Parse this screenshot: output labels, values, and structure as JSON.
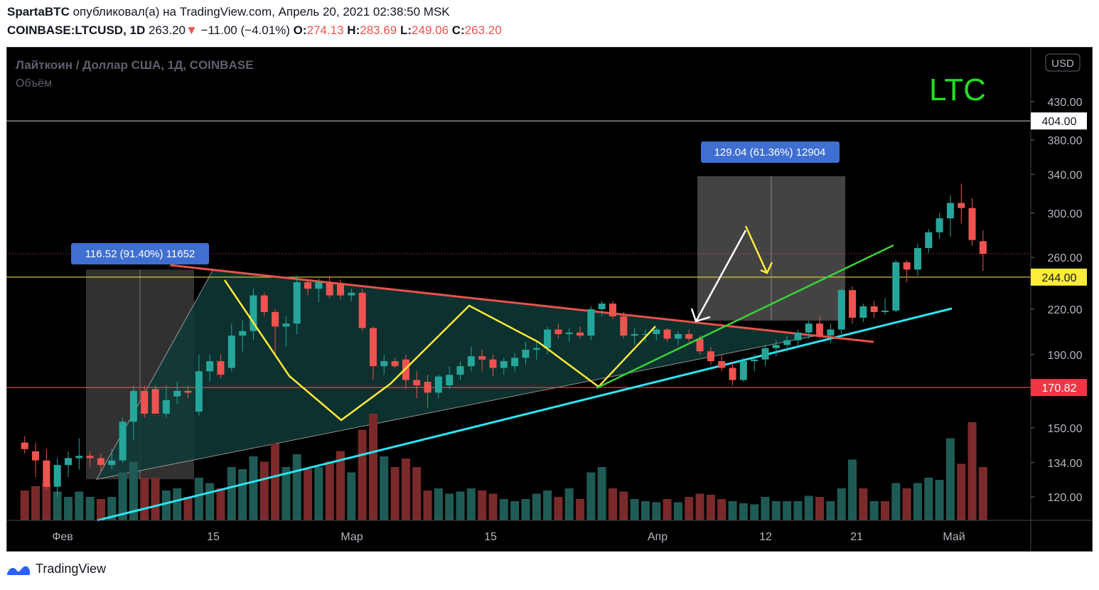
{
  "header": {
    "author": "SpartaBTC",
    "published_text": "опубликовал(а) на TradingView.com, Апрель 20, 2021 02:38:50 MSK",
    "symbol": "COINBASE:LTCUSD, 1D",
    "last_price": "263.20",
    "change_arrow": "▼",
    "change": "−11.00 (−4.01%)",
    "open_label": "O:",
    "open": "274.13",
    "high_label": "H:",
    "high": "283.69",
    "low_label": "L:",
    "low": "249.06",
    "close_label": "C:",
    "close": "263.20"
  },
  "footer": {
    "brand": "TradingView"
  },
  "colors": {
    "bull": "#26a69a",
    "bear": "#ef5350",
    "yellow": "#ffeb3b",
    "green": "#39d339",
    "cyan": "#2ce4f2",
    "red_line": "#e5534b",
    "measure_label": "#3f6fd1",
    "price_label_red": "#f23645",
    "price_label_yellow": "#ffeb3b"
  },
  "chart_data": {
    "type": "candlestick",
    "title": "Лайткоин / Доллар США, 1Д, COINBASE",
    "subtitle": "Объём",
    "annotation_text": "LTC",
    "currency_badge": "USD",
    "y_scale": "log",
    "ylim": [
      110,
      470
    ],
    "x_ticks": [
      "Фев",
      "15",
      "Мар",
      "15",
      "Апр",
      "12",
      "21",
      "Май"
    ],
    "y_ticks": [
      "430.00",
      "380.00",
      "340.00",
      "300.00",
      "260.00",
      "220.00",
      "190.00",
      "150.00",
      "134.00",
      "120.00"
    ],
    "price_labels": [
      {
        "value": "404.00",
        "style": "white"
      },
      {
        "value": "244.00",
        "style": "yellow"
      },
      {
        "value": "170.82",
        "style": "red"
      }
    ],
    "horizontal_lines": [
      404,
      244,
      170.82,
      263.2
    ],
    "measurements": [
      {
        "text": "116.52 (91.40%) 11652"
      },
      {
        "text": "129.04 (61.36%) 12904"
      }
    ],
    "candles": [
      {
        "d": "01-28",
        "o": 143,
        "h": 146,
        "l": 138,
        "c": 140
      },
      {
        "d": "01-29",
        "o": 139,
        "h": 143,
        "l": 128,
        "c": 135
      },
      {
        "d": "01-30",
        "o": 135,
        "h": 140,
        "l": 123,
        "c": 124
      },
      {
        "d": "01-31",
        "o": 124,
        "h": 136,
        "l": 120,
        "c": 133
      },
      {
        "d": "02-01",
        "o": 133,
        "h": 139,
        "l": 128,
        "c": 136
      },
      {
        "d": "02-02",
        "o": 136,
        "h": 145,
        "l": 131,
        "c": 137
      },
      {
        "d": "02-03",
        "o": 137,
        "h": 139,
        "l": 132,
        "c": 136
      },
      {
        "d": "02-04",
        "o": 136,
        "h": 138,
        "l": 130,
        "c": 133
      },
      {
        "d": "02-05",
        "o": 133,
        "h": 140,
        "l": 131,
        "c": 135
      },
      {
        "d": "02-06",
        "o": 135,
        "h": 155,
        "l": 134,
        "c": 153
      },
      {
        "d": "02-07",
        "o": 153,
        "h": 172,
        "l": 144,
        "c": 169
      },
      {
        "d": "02-08",
        "o": 169,
        "h": 172,
        "l": 155,
        "c": 157
      },
      {
        "d": "02-09",
        "o": 170,
        "h": 172,
        "l": 157,
        "c": 157
      },
      {
        "d": "02-10",
        "o": 157,
        "h": 172,
        "l": 155,
        "c": 164
      },
      {
        "d": "02-11",
        "o": 166,
        "h": 174,
        "l": 162,
        "c": 169
      },
      {
        "d": "02-12",
        "o": 169,
        "h": 172,
        "l": 165,
        "c": 168
      },
      {
        "d": "02-13",
        "o": 158,
        "h": 190,
        "l": 156,
        "c": 180
      },
      {
        "d": "02-14",
        "o": 180,
        "h": 190,
        "l": 174,
        "c": 186
      },
      {
        "d": "02-15",
        "o": 186,
        "h": 190,
        "l": 176,
        "c": 178
      },
      {
        "d": "02-16",
        "o": 182,
        "h": 210,
        "l": 180,
        "c": 202
      },
      {
        "d": "02-17",
        "o": 202,
        "h": 212,
        "l": 192,
        "c": 205
      },
      {
        "d": "02-18",
        "o": 205,
        "h": 235,
        "l": 199,
        "c": 230
      },
      {
        "d": "02-19",
        "o": 230,
        "h": 232,
        "l": 215,
        "c": 218
      },
      {
        "d": "02-20",
        "o": 218,
        "h": 220,
        "l": 190,
        "c": 208
      },
      {
        "d": "02-21",
        "o": 208,
        "h": 215,
        "l": 195,
        "c": 210
      },
      {
        "d": "02-22",
        "o": 210,
        "h": 245,
        "l": 203,
        "c": 240
      },
      {
        "d": "02-23",
        "o": 240,
        "h": 242,
        "l": 230,
        "c": 235
      },
      {
        "d": "02-24",
        "o": 235,
        "h": 243,
        "l": 225,
        "c": 240
      },
      {
        "d": "02-25",
        "o": 240,
        "h": 245,
        "l": 228,
        "c": 230
      },
      {
        "d": "02-26",
        "o": 239,
        "h": 242,
        "l": 227,
        "c": 230
      },
      {
        "d": "02-27",
        "o": 230,
        "h": 235,
        "l": 226,
        "c": 232
      },
      {
        "d": "02-28",
        "o": 232,
        "h": 235,
        "l": 205,
        "c": 207
      },
      {
        "d": "03-01",
        "o": 207,
        "h": 208,
        "l": 175,
        "c": 183
      },
      {
        "d": "03-02",
        "o": 183,
        "h": 190,
        "l": 178,
        "c": 186
      },
      {
        "d": "03-03",
        "o": 186,
        "h": 188,
        "l": 182,
        "c": 183
      },
      {
        "d": "03-04",
        "o": 187,
        "h": 190,
        "l": 170,
        "c": 175
      },
      {
        "d": "03-05",
        "o": 175,
        "h": 180,
        "l": 165,
        "c": 172
      },
      {
        "d": "03-06",
        "o": 174,
        "h": 178,
        "l": 160,
        "c": 168
      },
      {
        "d": "03-07",
        "o": 168,
        "h": 178,
        "l": 165,
        "c": 177
      },
      {
        "d": "03-08",
        "o": 172,
        "h": 183,
        "l": 170,
        "c": 178
      },
      {
        "d": "03-09",
        "o": 178,
        "h": 186,
        "l": 175,
        "c": 183
      },
      {
        "d": "03-10",
        "o": 183,
        "h": 195,
        "l": 180,
        "c": 189
      },
      {
        "d": "03-11",
        "o": 189,
        "h": 193,
        "l": 180,
        "c": 187
      },
      {
        "d": "03-12",
        "o": 187,
        "h": 190,
        "l": 177,
        "c": 182
      },
      {
        "d": "03-13",
        "o": 182,
        "h": 188,
        "l": 178,
        "c": 186
      },
      {
        "d": "03-14",
        "o": 183,
        "h": 191,
        "l": 180,
        "c": 188
      },
      {
        "d": "03-15",
        "o": 188,
        "h": 198,
        "l": 184,
        "c": 193
      },
      {
        "d": "03-16",
        "o": 193,
        "h": 198,
        "l": 187,
        "c": 194
      },
      {
        "d": "03-17",
        "o": 194,
        "h": 208,
        "l": 190,
        "c": 206
      },
      {
        "d": "03-18",
        "o": 206,
        "h": 210,
        "l": 200,
        "c": 203
      },
      {
        "d": "03-19",
        "o": 203,
        "h": 207,
        "l": 198,
        "c": 204
      },
      {
        "d": "03-20",
        "o": 204,
        "h": 208,
        "l": 200,
        "c": 202
      },
      {
        "d": "03-21",
        "o": 202,
        "h": 222,
        "l": 199,
        "c": 220
      },
      {
        "d": "03-22",
        "o": 220,
        "h": 226,
        "l": 215,
        "c": 224
      },
      {
        "d": "03-23",
        "o": 224,
        "h": 226,
        "l": 213,
        "c": 215
      },
      {
        "d": "03-24",
        "o": 215,
        "h": 218,
        "l": 200,
        "c": 202
      },
      {
        "d": "03-25",
        "o": 202,
        "h": 207,
        "l": 196,
        "c": 203
      },
      {
        "d": "03-26",
        "o": 203,
        "h": 206,
        "l": 198,
        "c": 203
      },
      {
        "d": "03-27",
        "o": 203,
        "h": 207,
        "l": 199,
        "c": 206
      },
      {
        "d": "03-28",
        "o": 206,
        "h": 207,
        "l": 198,
        "c": 200
      },
      {
        "d": "03-29",
        "o": 200,
        "h": 205,
        "l": 196,
        "c": 203
      },
      {
        "d": "03-30",
        "o": 203,
        "h": 206,
        "l": 198,
        "c": 200
      },
      {
        "d": "03-31",
        "o": 200,
        "h": 202,
        "l": 190,
        "c": 192
      },
      {
        "d": "04-01",
        "o": 192,
        "h": 195,
        "l": 184,
        "c": 186
      },
      {
        "d": "04-02",
        "o": 186,
        "h": 190,
        "l": 180,
        "c": 182
      },
      {
        "d": "04-03",
        "o": 182,
        "h": 185,
        "l": 172,
        "c": 175
      },
      {
        "d": "04-04",
        "o": 175,
        "h": 188,
        "l": 174,
        "c": 186
      },
      {
        "d": "04-05",
        "o": 186,
        "h": 190,
        "l": 180,
        "c": 187
      },
      {
        "d": "04-06",
        "o": 187,
        "h": 196,
        "l": 183,
        "c": 194
      },
      {
        "d": "04-07",
        "o": 194,
        "h": 199,
        "l": 189,
        "c": 196
      },
      {
        "d": "04-08",
        "o": 196,
        "h": 202,
        "l": 192,
        "c": 199
      },
      {
        "d": "04-09",
        "o": 199,
        "h": 206,
        "l": 195,
        "c": 204
      },
      {
        "d": "04-10",
        "o": 204,
        "h": 212,
        "l": 200,
        "c": 210
      },
      {
        "d": "04-11",
        "o": 210,
        "h": 215,
        "l": 200,
        "c": 202
      },
      {
        "d": "04-12",
        "o": 202,
        "h": 210,
        "l": 197,
        "c": 206
      },
      {
        "d": "04-13",
        "o": 206,
        "h": 236,
        "l": 203,
        "c": 234
      },
      {
        "d": "04-14",
        "o": 234,
        "h": 237,
        "l": 210,
        "c": 214
      },
      {
        "d": "04-15",
        "o": 214,
        "h": 224,
        "l": 211,
        "c": 222
      },
      {
        "d": "04-16",
        "o": 222,
        "h": 226,
        "l": 214,
        "c": 218
      },
      {
        "d": "04-17",
        "o": 218,
        "h": 228,
        "l": 216,
        "c": 219
      },
      {
        "d": "04-18",
        "o": 219,
        "h": 258,
        "l": 218,
        "c": 256
      },
      {
        "d": "04-19",
        "o": 256,
        "h": 258,
        "l": 240,
        "c": 250
      },
      {
        "d": "04-20",
        "o": 250,
        "h": 272,
        "l": 245,
        "c": 268
      },
      {
        "d": "04-21",
        "o": 268,
        "h": 285,
        "l": 264,
        "c": 282
      },
      {
        "d": "04-22",
        "o": 282,
        "h": 300,
        "l": 276,
        "c": 295
      },
      {
        "d": "04-23",
        "o": 295,
        "h": 318,
        "l": 278,
        "c": 310
      },
      {
        "d": "04-24",
        "o": 310,
        "h": 330,
        "l": 290,
        "c": 305
      },
      {
        "d": "04-25",
        "o": 305,
        "h": 315,
        "l": 270,
        "c": 275
      },
      {
        "d": "04-26",
        "o": 274,
        "h": 284,
        "l": 249,
        "c": 263
      }
    ],
    "volume": [
      {
        "d": "01-28",
        "v": 0.28,
        "up": false
      },
      {
        "d": "01-29",
        "v": 0.32,
        "up": false
      },
      {
        "d": "01-30",
        "v": 0.35,
        "up": false
      },
      {
        "d": "01-31",
        "v": 0.27,
        "up": true
      },
      {
        "d": "02-01",
        "v": 0.22,
        "up": true
      },
      {
        "d": "02-02",
        "v": 0.27,
        "up": true
      },
      {
        "d": "02-03",
        "v": 0.22,
        "up": true
      },
      {
        "d": "02-04",
        "v": 0.2,
        "up": false
      },
      {
        "d": "02-05",
        "v": 0.22,
        "up": true
      },
      {
        "d": "02-06",
        "v": 0.45,
        "up": true
      },
      {
        "d": "02-07",
        "v": 0.55,
        "up": true
      },
      {
        "d": "02-08",
        "v": 0.4,
        "up": false
      },
      {
        "d": "02-09",
        "v": 0.4,
        "up": false
      },
      {
        "d": "02-10",
        "v": 0.28,
        "up": true
      },
      {
        "d": "02-11",
        "v": 0.3,
        "up": true
      },
      {
        "d": "02-12",
        "v": 0.22,
        "up": false
      },
      {
        "d": "02-13",
        "v": 0.4,
        "up": true
      },
      {
        "d": "02-14",
        "v": 0.35,
        "up": true
      },
      {
        "d": "02-15",
        "v": 0.3,
        "up": false
      },
      {
        "d": "02-16",
        "v": 0.5,
        "up": true
      },
      {
        "d": "02-17",
        "v": 0.48,
        "up": true
      },
      {
        "d": "02-18",
        "v": 0.6,
        "up": true
      },
      {
        "d": "02-19",
        "v": 0.55,
        "up": false
      },
      {
        "d": "02-20",
        "v": 0.72,
        "up": false
      },
      {
        "d": "02-21",
        "v": 0.5,
        "up": true
      },
      {
        "d": "02-22",
        "v": 0.62,
        "up": true
      },
      {
        "d": "02-23",
        "v": 0.48,
        "up": false
      },
      {
        "d": "02-24",
        "v": 0.5,
        "up": true
      },
      {
        "d": "02-25",
        "v": 0.55,
        "up": false
      },
      {
        "d": "02-26",
        "v": 0.65,
        "up": false
      },
      {
        "d": "02-27",
        "v": 0.45,
        "up": true
      },
      {
        "d": "02-28",
        "v": 0.85,
        "up": false
      },
      {
        "d": "03-01",
        "v": 1.0,
        "up": false
      },
      {
        "d": "03-02",
        "v": 0.6,
        "up": true
      },
      {
        "d": "03-03",
        "v": 0.5,
        "up": false
      },
      {
        "d": "03-04",
        "v": 0.58,
        "up": false
      },
      {
        "d": "03-05",
        "v": 0.5,
        "up": false
      },
      {
        "d": "03-06",
        "v": 0.28,
        "up": false
      },
      {
        "d": "03-07",
        "v": 0.3,
        "up": true
      },
      {
        "d": "03-08",
        "v": 0.25,
        "up": true
      },
      {
        "d": "03-09",
        "v": 0.27,
        "up": true
      },
      {
        "d": "03-10",
        "v": 0.3,
        "up": true
      },
      {
        "d": "03-11",
        "v": 0.28,
        "up": false
      },
      {
        "d": "03-12",
        "v": 0.25,
        "up": false
      },
      {
        "d": "03-13",
        "v": 0.2,
        "up": true
      },
      {
        "d": "03-14",
        "v": 0.18,
        "up": true
      },
      {
        "d": "03-15",
        "v": 0.2,
        "up": true
      },
      {
        "d": "03-16",
        "v": 0.25,
        "up": true
      },
      {
        "d": "03-17",
        "v": 0.28,
        "up": true
      },
      {
        "d": "03-18",
        "v": 0.22,
        "up": false
      },
      {
        "d": "03-19",
        "v": 0.3,
        "up": true
      },
      {
        "d": "03-20",
        "v": 0.2,
        "up": false
      },
      {
        "d": "03-21",
        "v": 0.45,
        "up": true
      },
      {
        "d": "03-22",
        "v": 0.5,
        "up": true
      },
      {
        "d": "03-23",
        "v": 0.3,
        "up": false
      },
      {
        "d": "03-24",
        "v": 0.27,
        "up": false
      },
      {
        "d": "03-25",
        "v": 0.2,
        "up": true
      },
      {
        "d": "03-26",
        "v": 0.18,
        "up": true
      },
      {
        "d": "03-27",
        "v": 0.17,
        "up": true
      },
      {
        "d": "03-28",
        "v": 0.2,
        "up": false
      },
      {
        "d": "03-29",
        "v": 0.17,
        "up": true
      },
      {
        "d": "03-30",
        "v": 0.22,
        "up": false
      },
      {
        "d": "03-31",
        "v": 0.25,
        "up": false
      },
      {
        "d": "04-01",
        "v": 0.24,
        "up": false
      },
      {
        "d": "04-02",
        "v": 0.2,
        "up": false
      },
      {
        "d": "04-03",
        "v": 0.18,
        "up": true
      },
      {
        "d": "04-04",
        "v": 0.16,
        "up": true
      },
      {
        "d": "04-05",
        "v": 0.15,
        "up": true
      },
      {
        "d": "04-06",
        "v": 0.22,
        "up": true
      },
      {
        "d": "04-07",
        "v": 0.18,
        "up": true
      },
      {
        "d": "04-08",
        "v": 0.18,
        "up": true
      },
      {
        "d": "04-09",
        "v": 0.18,
        "up": true
      },
      {
        "d": "04-10",
        "v": 0.23,
        "up": true
      },
      {
        "d": "04-11",
        "v": 0.22,
        "up": false
      },
      {
        "d": "04-12",
        "v": 0.18,
        "up": true
      },
      {
        "d": "04-13",
        "v": 0.3,
        "up": true
      },
      {
        "d": "04-14",
        "v": 0.57,
        "up": true
      },
      {
        "d": "04-15",
        "v": 0.3,
        "up": false
      },
      {
        "d": "04-16",
        "v": 0.18,
        "up": true
      },
      {
        "d": "04-17",
        "v": 0.18,
        "up": false
      },
      {
        "d": "04-18",
        "v": 0.35,
        "up": true
      },
      {
        "d": "04-19",
        "v": 0.3,
        "up": false
      },
      {
        "d": "04-20",
        "v": 0.35,
        "up": true
      },
      {
        "d": "04-21",
        "v": 0.4,
        "up": true
      },
      {
        "d": "04-22",
        "v": 0.38,
        "up": true
      },
      {
        "d": "04-23",
        "v": 0.77,
        "up": true
      },
      {
        "d": "04-24",
        "v": 0.53,
        "up": false
      },
      {
        "d": "04-25",
        "v": 0.92,
        "up": false
      },
      {
        "d": "04-26",
        "v": 0.5,
        "up": false
      }
    ]
  }
}
